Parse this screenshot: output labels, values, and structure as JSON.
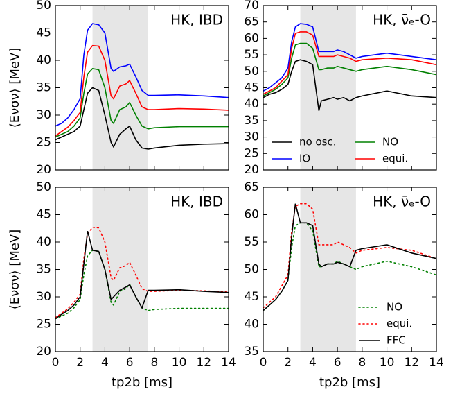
{
  "chart_data": [
    {
      "type": "line",
      "annotation": "HK, IBD",
      "ylabel": "⟨Eνσν⟩ [MeV]",
      "x": [
        0,
        0.5,
        1,
        1.5,
        2,
        2.3,
        2.6,
        3,
        3.5,
        4,
        4.5,
        4.7,
        5.2,
        5.7,
        6,
        6.5,
        7,
        7.5,
        8,
        10,
        12,
        14
      ],
      "xlim": [
        0,
        14
      ],
      "xticks": [
        0,
        2,
        4,
        6,
        8,
        10,
        12,
        14
      ],
      "show_xticklabels": false,
      "ylim": [
        20,
        50
      ],
      "yticks": [
        20,
        25,
        30,
        35,
        40,
        45,
        50
      ],
      "shaded_xrange": [
        3,
        7.5
      ],
      "series": [
        {
          "color": "#000000",
          "style": "solid",
          "values": [
            25.5,
            26,
            26.5,
            27,
            28,
            31,
            34,
            35,
            34.5,
            30,
            25,
            24.2,
            26.5,
            27.5,
            28,
            25.5,
            24,
            23.8,
            24,
            24.5,
            24.7,
            24.8
          ]
        },
        {
          "color": "#0000ff",
          "style": "solid",
          "values": [
            28,
            28.5,
            29.5,
            31,
            33,
            41,
            45.5,
            46.7,
            46.5,
            45,
            38.5,
            38,
            38.8,
            39,
            39.3,
            37,
            34.5,
            33.6,
            33.6,
            33.7,
            33.5,
            33.2
          ]
        },
        {
          "color": "#008000",
          "style": "solid",
          "values": [
            26,
            26.5,
            27,
            28,
            29.5,
            34,
            37.5,
            38.5,
            38.3,
            35,
            29,
            28.5,
            31,
            31.5,
            32.3,
            30,
            28,
            27.5,
            27.7,
            27.9,
            27.9,
            27.9
          ]
        },
        {
          "color": "#ff0000",
          "style": "solid",
          "values": [
            26.2,
            27,
            27.8,
            29,
            30.5,
            37,
            41.5,
            42.7,
            42.6,
            40,
            33.5,
            33,
            35.3,
            35.7,
            36.3,
            34,
            31.5,
            31,
            31,
            31.2,
            31.1,
            30.9
          ]
        }
      ]
    },
    {
      "type": "line",
      "annotation": "HK, ν̄ₑ-O",
      "x": [
        0,
        0.5,
        1,
        1.5,
        2,
        2.3,
        2.6,
        3,
        3.5,
        4,
        4.5,
        4.7,
        5.2,
        5.7,
        6,
        6.5,
        7,
        7.5,
        8,
        10,
        12,
        14
      ],
      "xlim": [
        0,
        14
      ],
      "xticks": [
        0,
        2,
        4,
        6,
        8,
        10,
        12,
        14
      ],
      "show_xticklabels": false,
      "ylim": [
        20,
        70
      ],
      "yticks": [
        20,
        25,
        30,
        35,
        40,
        45,
        50,
        55,
        60,
        65,
        70
      ],
      "shaded_xrange": [
        3,
        7.5
      ],
      "legend": "lower",
      "legend_columns": 2,
      "series": [
        {
          "name": "no osc.",
          "color": "#000000",
          "style": "solid",
          "values": [
            42,
            43,
            43.5,
            44.5,
            46,
            50,
            53,
            53.5,
            53,
            52,
            38,
            41,
            41.5,
            42,
            41.5,
            42,
            41,
            42,
            42.5,
            44,
            42.5,
            42
          ]
        },
        {
          "name": "IO",
          "color": "#0000ff",
          "style": "solid",
          "values": [
            44,
            45,
            46.5,
            48,
            51,
            59,
            63.5,
            64.5,
            64.3,
            63.5,
            56,
            56,
            56,
            56,
            56.5,
            56,
            55,
            54,
            54.5,
            55.5,
            54.5,
            53.5
          ]
        },
        {
          "name": "NO",
          "color": "#008000",
          "style": "solid",
          "values": [
            42.5,
            43.5,
            44.5,
            46,
            48,
            54,
            58,
            58.5,
            58.5,
            57,
            50.5,
            50.5,
            51,
            51,
            51.5,
            51,
            50.5,
            50,
            50.5,
            51.5,
            50.5,
            49
          ]
        },
        {
          "name": "equi.",
          "color": "#ff0000",
          "style": "solid",
          "values": [
            43,
            44,
            45,
            47,
            49,
            57,
            61.5,
            62,
            62,
            61,
            54.5,
            54.5,
            54.5,
            54.5,
            55,
            54.5,
            54,
            53,
            53.5,
            54,
            53.5,
            52
          ]
        }
      ]
    },
    {
      "type": "line",
      "annotation": "HK, IBD",
      "ylabel": "⟨Eνσν⟩ [MeV]",
      "xlabel": "tp2b [ms]",
      "x": [
        0,
        0.5,
        1,
        1.5,
        2,
        2.3,
        2.6,
        3,
        3.5,
        4,
        4.5,
        4.7,
        5.2,
        5.7,
        6,
        6.5,
        7,
        7.5,
        8,
        10,
        12,
        14
      ],
      "xlim": [
        0,
        14
      ],
      "xticks": [
        0,
        2,
        4,
        6,
        8,
        10,
        12,
        14
      ],
      "show_xticklabels": true,
      "ylim": [
        20,
        50
      ],
      "yticks": [
        20,
        25,
        30,
        35,
        40,
        45,
        50
      ],
      "shaded_xrange": [
        3,
        7.5
      ],
      "series": [
        {
          "color": "#008000",
          "style": "dotted",
          "values": [
            26,
            26.5,
            27,
            28,
            29.5,
            34,
            37.5,
            38.5,
            38.3,
            35,
            29,
            28.5,
            31,
            31.5,
            32.3,
            30,
            28,
            27.5,
            27.7,
            27.9,
            27.9,
            27.9
          ]
        },
        {
          "color": "#ff0000",
          "style": "dotted",
          "values": [
            26.2,
            27,
            27.8,
            29,
            30.5,
            37,
            41.5,
            42.7,
            42.6,
            40,
            33.5,
            33,
            35.3,
            35.7,
            36.3,
            34,
            31.5,
            31,
            31,
            31.2,
            31.1,
            30.9
          ]
        },
        {
          "color": "#000000",
          "style": "solid",
          "values": [
            26,
            26.8,
            27.5,
            28.5,
            30,
            36,
            42,
            38.5,
            38.3,
            35,
            29.5,
            30,
            31.2,
            31.8,
            32.2,
            30,
            28,
            31.2,
            31.2,
            31.3,
            31,
            30.8
          ]
        }
      ]
    },
    {
      "type": "line",
      "annotation": "HK, ν̄ₑ-O",
      "xlabel": "tp2b [ms]",
      "x": [
        0,
        0.5,
        1,
        1.5,
        2,
        2.3,
        2.6,
        3,
        3.5,
        4,
        4.5,
        4.7,
        5.2,
        5.7,
        6,
        6.5,
        7,
        7.5,
        8,
        10,
        12,
        14
      ],
      "xlim": [
        0,
        14
      ],
      "xticks": [
        0,
        2,
        4,
        6,
        8,
        10,
        12,
        14
      ],
      "show_xticklabels": true,
      "ylim": [
        35,
        65
      ],
      "yticks": [
        35,
        40,
        45,
        50,
        55,
        60,
        65
      ],
      "shaded_xrange": [
        3,
        7.5
      ],
      "legend": "lower right",
      "legend_columns": 1,
      "series": [
        {
          "name": "NO",
          "color": "#008000",
          "style": "dotted",
          "values": [
            42.5,
            43.5,
            44.5,
            46,
            48,
            54,
            58,
            58.5,
            58.5,
            57,
            50.5,
            50.5,
            51,
            51,
            51.5,
            51,
            50.5,
            50,
            50.5,
            51.5,
            50.5,
            49
          ]
        },
        {
          "name": "equi.",
          "color": "#ff0000",
          "style": "dotted",
          "values": [
            43,
            44,
            45,
            47,
            49,
            57,
            61.5,
            62,
            62,
            61,
            54.5,
            54.5,
            54.5,
            54.5,
            55,
            54.5,
            54,
            53,
            53.5,
            54,
            53.5,
            52
          ]
        },
        {
          "name": "FFC",
          "color": "#000000",
          "style": "solid",
          "values": [
            42.5,
            43.5,
            44.5,
            46,
            48,
            56,
            62,
            58.5,
            58.5,
            58,
            51,
            50.5,
            51,
            51,
            51.3,
            51,
            50.5,
            53.5,
            53.8,
            54.5,
            53,
            52
          ]
        }
      ]
    }
  ]
}
